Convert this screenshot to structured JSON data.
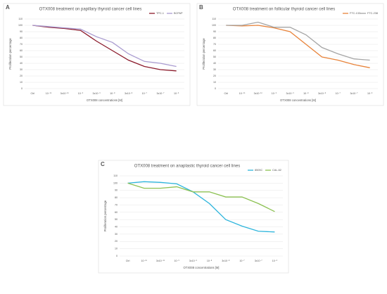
{
  "chart_data": [
    {
      "type": "line",
      "panel_label": "A",
      "title": "OTX008 treatment on papillary thyroid cancer cell lines",
      "x_label": "OTX008 concentrations [M]",
      "y_label": "Proliferation percentage",
      "categories": [
        "Ctrl",
        "10⁻¹⁰",
        "3x10⁻¹⁰",
        "10⁻⁹",
        "3x10⁻⁹",
        "10⁻⁸",
        "3x10⁻⁸",
        "10⁻⁷",
        "3x10⁻⁷",
        "10⁻⁶"
      ],
      "series": [
        {
          "name": "TPC-1",
          "color": "#8b1a2b",
          "values": [
            100,
            97,
            95,
            92,
            75,
            60,
            45,
            35,
            30,
            28
          ]
        },
        {
          "name": "BCPAP",
          "color": "#a99bd0",
          "values": [
            100,
            98,
            96,
            94,
            82,
            73,
            55,
            43,
            40,
            35
          ]
        }
      ],
      "ylim": [
        0,
        110
      ],
      "yticks": [
        0,
        10,
        20,
        30,
        40,
        50,
        60,
        70,
        80,
        90,
        100,
        110
      ],
      "grid": true,
      "legend": "top-right"
    },
    {
      "type": "line",
      "panel_label": "B",
      "title": "OTX008 treatment on follicular thyroid cancer cell lines",
      "x_label": "OTX008 concentrations [M]",
      "y_label": "Proliferation percentage",
      "categories": [
        "Ctrl",
        "10⁻¹⁰",
        "3x10⁻¹⁰",
        "10⁻⁹",
        "3x10⁻⁹",
        "10⁻⁸",
        "3x10⁻⁸",
        "10⁻⁷",
        "3x10⁻⁷",
        "10⁻⁶"
      ],
      "series": [
        {
          "name": "FTC-133",
          "color": "#e8833a",
          "values": [
            100,
            99,
            100,
            96,
            90,
            70,
            50,
            45,
            38,
            33
          ]
        },
        {
          "name": "FTC-238",
          "color": "#a5a5a5",
          "values": [
            100,
            100,
            105,
            97,
            97,
            85,
            65,
            55,
            47,
            45
          ]
        }
      ],
      "ylim": [
        0,
        110
      ],
      "yticks": [
        0,
        10,
        20,
        30,
        40,
        50,
        60,
        70,
        80,
        90,
        100,
        110
      ],
      "grid": true,
      "legend": "top-right"
    },
    {
      "type": "line",
      "panel_label": "C",
      "title": "OTX008 treatment on anaplastic thyroid cancer cell lines",
      "x_label": "OTX008 concentrations [M]",
      "y_label": "Proliferation percentage",
      "categories": [
        "Ctrl",
        "10⁻¹⁰",
        "3x10⁻¹⁰",
        "10⁻⁹",
        "3x10⁻⁹",
        "10⁻⁸",
        "3x10⁻⁸",
        "10⁻⁷",
        "3x10⁻⁷",
        "10⁻⁶"
      ],
      "series": [
        {
          "name": "8505C",
          "color": "#2eb5dc",
          "values": [
            100,
            102,
            101,
            99,
            88,
            72,
            50,
            41,
            34,
            33
          ]
        },
        {
          "name": "CAL-62",
          "color": "#8cc152",
          "values": [
            100,
            93,
            93,
            95,
            88,
            88,
            81,
            81,
            72,
            61
          ]
        }
      ],
      "ylim": [
        0,
        110
      ],
      "yticks": [
        0,
        10,
        20,
        30,
        40,
        50,
        60,
        70,
        80,
        90,
        100,
        110
      ],
      "grid": true,
      "legend": "top-right"
    }
  ]
}
